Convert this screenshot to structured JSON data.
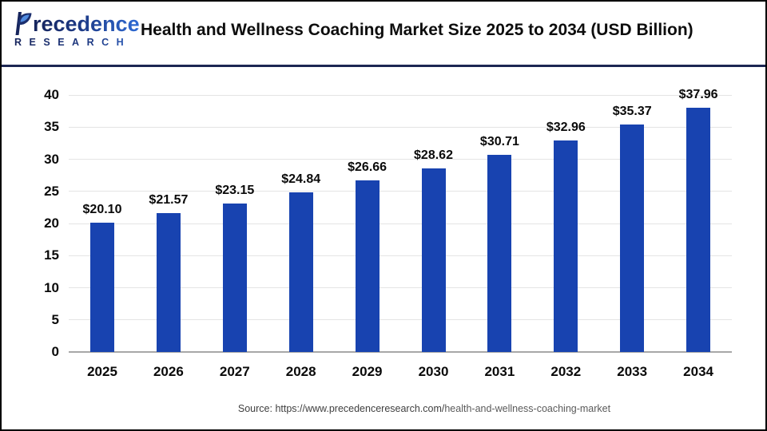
{
  "header": {
    "logo_brand_rest": "recedence",
    "logo_sub": "RESEARCH",
    "title": "Health and Wellness Coaching Market Size 2025 to 2034 (USD Billion)"
  },
  "chart_data": {
    "type": "bar",
    "title": "Health and Wellness Coaching Market Size 2025 to 2034 (USD Billion)",
    "categories": [
      "2025",
      "2026",
      "2027",
      "2028",
      "2029",
      "2030",
      "2031",
      "2032",
      "2033",
      "2034"
    ],
    "values": [
      20.1,
      21.57,
      23.15,
      24.84,
      26.66,
      28.62,
      30.71,
      32.96,
      35.37,
      37.96
    ],
    "value_labels": [
      "$20.10",
      "$21.57",
      "$23.15",
      "$24.84",
      "$26.66",
      "$28.62",
      "$30.71",
      "$32.96",
      "$35.37",
      "$37.96"
    ],
    "value_prefix": "$",
    "xlabel": "",
    "ylabel": "",
    "ylim": [
      0,
      40
    ],
    "yticks": [
      0,
      5,
      10,
      15,
      20,
      25,
      30,
      35,
      40
    ],
    "grid": true,
    "legend": "none",
    "bar_color": "#1843b0",
    "baseline_color": "#a8a8a8",
    "gridline_color": "#e4e4e4"
  },
  "footer": {
    "source_prefix": "Source: https://www.precedenceresearch.com/",
    "source_suffix": "health-and-wellness-coaching-market"
  }
}
